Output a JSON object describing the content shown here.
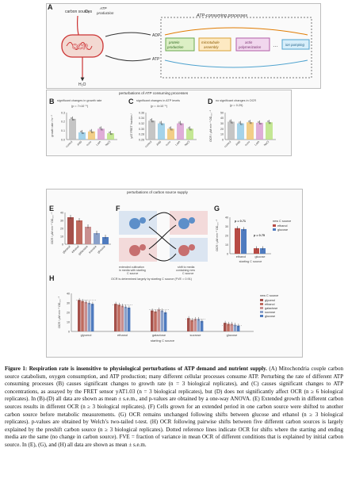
{
  "panelA": {
    "letter": "A",
    "carbon_sources": "carbon sources",
    "o2": "O₂",
    "atp_production": "ATP\nproduction",
    "ocr": "OCR",
    "adp": "ADP",
    "atp": "ATP",
    "h2o": "H₂O",
    "consuming_title": "ATP-consuming processes",
    "processes": [
      "protein\nproduction",
      "microtubule\nassembly",
      "actin\npolymerization",
      "ion pumping"
    ],
    "dots": "…"
  },
  "section1": {
    "title": "perturbations of ATP consuming processes"
  },
  "panelB": {
    "letter": "B",
    "title": "significant changes in growth rate",
    "pval": "(p = 7×10⁻⁵)",
    "ylabel": "growth rate / hr⁻¹"
  },
  "panelC": {
    "letter": "C",
    "title": "significant changes in ATP levels",
    "pval": "(p = 4×10⁻⁵)",
    "ylabel": "yAT FRET fraction /"
  },
  "panelD": {
    "letter": "D",
    "title": "no significant changes in OCR",
    "pval": "(p = 0.29)",
    "ylabel": "OCR / μM min⁻¹ OD₆₀₀⁻¹"
  },
  "treatments": [
    "control",
    "ANS",
    "noco",
    "LatA",
    "NaCl"
  ],
  "section2": {
    "title": "perturbations of carbon source supply"
  },
  "panelE": {
    "letter": "E",
    "ylabel": "OCR / μM min⁻¹ OD₆₀₀⁻¹",
    "categories": [
      "glycerol",
      "ethanol",
      "galactose",
      "sucrose",
      "glucose"
    ]
  },
  "panelF": {
    "letter": "F",
    "caption_left": "extended cultivation\nin media with starting\nC source",
    "caption_right": "shift to media\ncontaining new\nC source"
  },
  "panelG": {
    "letter": "G",
    "ylabel": "OCR / μM min⁻¹ OD₆₀₀⁻¹",
    "p1": "p = 0.71",
    "p2": "p = 0.75",
    "legend_title": "new C source",
    "legend": [
      "ethanol",
      "glucose"
    ],
    "categories": [
      "ethanol",
      "glucose"
    ],
    "xlabel": "starting C source"
  },
  "panelH": {
    "letter": "H",
    "title": "OCR is determined largely by starting C source (FVE = 0.91)",
    "ylabel": "OCR / μM min⁻¹ OD₆₀₀⁻¹",
    "xlabel": "starting C source",
    "legend_title": "new C source",
    "legend": [
      "glycerol",
      "ethanol",
      "galactose",
      "sucrose",
      "glucose"
    ],
    "categories": [
      "glycerol",
      "ethanol",
      "galactose",
      "sucrose",
      "glucose"
    ]
  },
  "caption": {
    "label": "Figure 1:",
    "title": "Respiration rate is insensitive to physiological perturbations of ATP demand and nutrient supply.",
    "body": "(A) Mitochondria couple carbon source catabolism, oxygen consumption, and ATP production; many different cellular processes consume ATP. Perturbing the rate of different ATP consuming processes (B) causes significant changes to growth rate (n = 3 biological replicates), and (C) causes significant changes to ATP concentrations, as assayed by the FRET sensor yAT1.03 (n = 3 biological replicates), but (D) does not significantly affect OCR (n ≥ 6 biological replicates). In (B)-(D) all data are shown as mean ± s.e.m., and p-values are obtained by a one-way ANOVA. (E) Extended growth in different carbon sources results in different OCR (n ≥ 3 biological replicates). (F) Cells grown for an extended period in one carbon source were shifted to another carbon source before metabolic measurements. (G) OCR remains unchanged following shifts between glucose and ethanol (n ≥ 3 biological replicates). p-values are obtained by Welch’s two-tailed t-test. (H) OCR following pairwise shifts between five different carbon sources is largely explained by the preshift carbon source (n ≥ 3 biological replicates). Dotted reference lines indicate OCR for shifts where the starting and ending media are the same (no change in carbon source). FVE = fraction of variance in mean OCR of different conditions that is explained by initial carbon source. In (E), (G), and (H) all data are shown as mean ± s.e.m."
  },
  "chart_data": [
    {
      "type": "bar",
      "title": "significant changes in growth rate",
      "categories": [
        "control",
        "ANS",
        "noco",
        "LatA",
        "NaCl"
      ],
      "values": [
        0.23,
        0.08,
        0.09,
        0.12,
        0.07
      ],
      "ylim": [
        0,
        0.3
      ]
    },
    {
      "type": "bar",
      "title": "significant changes in ATP levels",
      "categories": [
        "control",
        "ANS",
        "noco",
        "LatA",
        "NaCl"
      ],
      "values": [
        0.33,
        0.32,
        0.3,
        0.32,
        0.3
      ],
      "ylim": [
        0.26,
        0.36
      ]
    },
    {
      "type": "bar",
      "title": "no significant changes in OCR",
      "categories": [
        "control",
        "ANS",
        "noco",
        "LatA",
        "NaCl"
      ],
      "values": [
        33,
        30,
        32,
        31,
        32
      ],
      "ylim": [
        0,
        50
      ]
    },
    {
      "type": "bar",
      "categories": [
        "glycerol",
        "ethanol",
        "galactose",
        "sucrose",
        "glucose"
      ],
      "values": [
        34,
        30,
        22,
        14,
        9
      ],
      "ylim": [
        0,
        40
      ]
    },
    {
      "type": "bar",
      "categories": [
        "ethanol",
        "glucose"
      ],
      "series": [
        {
          "name": "ethanol",
          "values": [
            28,
            6
          ]
        },
        {
          "name": "glucose",
          "values": [
            27,
            6
          ]
        }
      ],
      "ylim": [
        0,
        40
      ]
    },
    {
      "type": "bar",
      "title": "OCR is determined largely by starting C source (FVE = 0.91)",
      "categories": [
        "glycerol",
        "ethanol",
        "galactose",
        "sucrose",
        "glucose"
      ],
      "series": [
        {
          "name": "glycerol",
          "values": [
            33,
            29,
            22,
            14,
            9
          ]
        },
        {
          "name": "ethanol",
          "values": [
            32,
            28,
            21,
            12,
            8
          ]
        },
        {
          "name": "galactose",
          "values": [
            31,
            27,
            23,
            13,
            8
          ]
        },
        {
          "name": "sucrose",
          "values": [
            30,
            26,
            22,
            13,
            7
          ]
        },
        {
          "name": "glucose",
          "values": [
            29,
            25,
            20,
            11,
            6
          ]
        }
      ],
      "ylim": [
        0,
        40
      ]
    }
  ],
  "colors": {
    "growth": "#9bbfd9",
    "bar_ctrl": "#b8b8b8",
    "ans": "#8fc9e6",
    "noco": "#f0c36a",
    "lata": "#d89ad0",
    "nacl": "#b6e27a",
    "ethanol": "#b74a44",
    "glucose": "#4f7bbf"
  }
}
